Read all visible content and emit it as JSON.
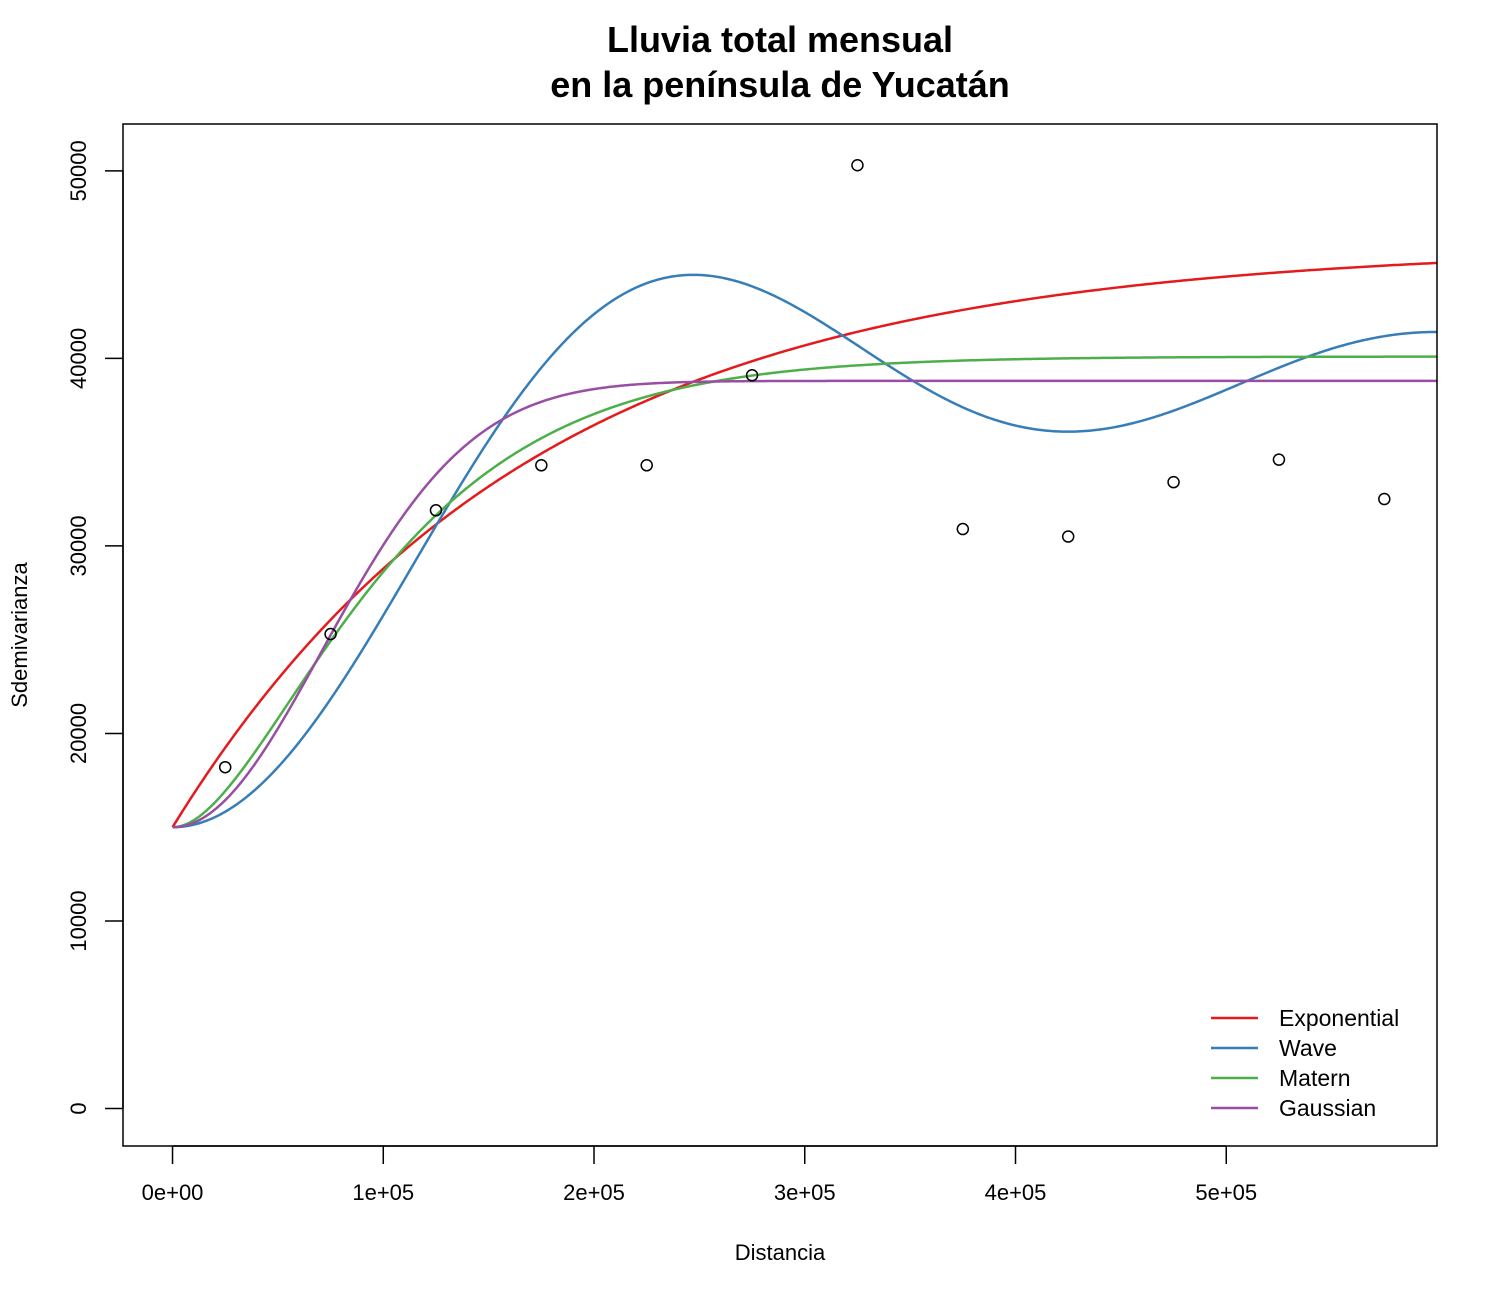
{
  "chart_data": {
    "type": "scatter",
    "title_lines": [
      "Lluvia total mensual",
      "en la península de Yucatán"
    ],
    "xlabel": "Distancia",
    "ylabel": "Sdemivarianza",
    "xlim": [
      -23500,
      600000
    ],
    "ylim": [
      -2000,
      52500
    ],
    "x_ticks": [
      0,
      100000,
      200000,
      300000,
      400000,
      500000
    ],
    "x_tick_labels": [
      "0e+00",
      "1e+05",
      "2e+05",
      "3e+05",
      "4e+05",
      "5e+05"
    ],
    "y_ticks": [
      0,
      10000,
      20000,
      30000,
      40000,
      50000
    ],
    "y_tick_labels": [
      "0",
      "10000",
      "20000",
      "30000",
      "40000",
      "50000"
    ],
    "points": {
      "x": [
        25000,
        75000,
        125000,
        175000,
        225000,
        275000,
        325000,
        375000,
        425000,
        475000,
        525000,
        575000
      ],
      "y": [
        18200,
        25300,
        31900,
        34300,
        34300,
        39100,
        50300,
        30900,
        30500,
        33400,
        34600,
        32500
      ]
    },
    "series": [
      {
        "name": "Exponential",
        "color": "#e41a1c",
        "model": "exponential",
        "nugget": 15000,
        "psill": 31000,
        "range": 170000
      },
      {
        "name": "Wave",
        "color": "#377eb8",
        "model": "wave",
        "nugget": 15000,
        "psill": 24200,
        "range": 55000
      },
      {
        "name": "Matern",
        "color": "#4daf4a",
        "model": "matern32",
        "nugget": 15000,
        "psill": 25100,
        "range": 55000
      },
      {
        "name": "Gaussian",
        "color": "#984ea3",
        "model": "gaussian",
        "nugget": 15000,
        "psill": 23800,
        "range": 100000
      }
    ],
    "legend_position": "bottom-right",
    "grid": false
  }
}
